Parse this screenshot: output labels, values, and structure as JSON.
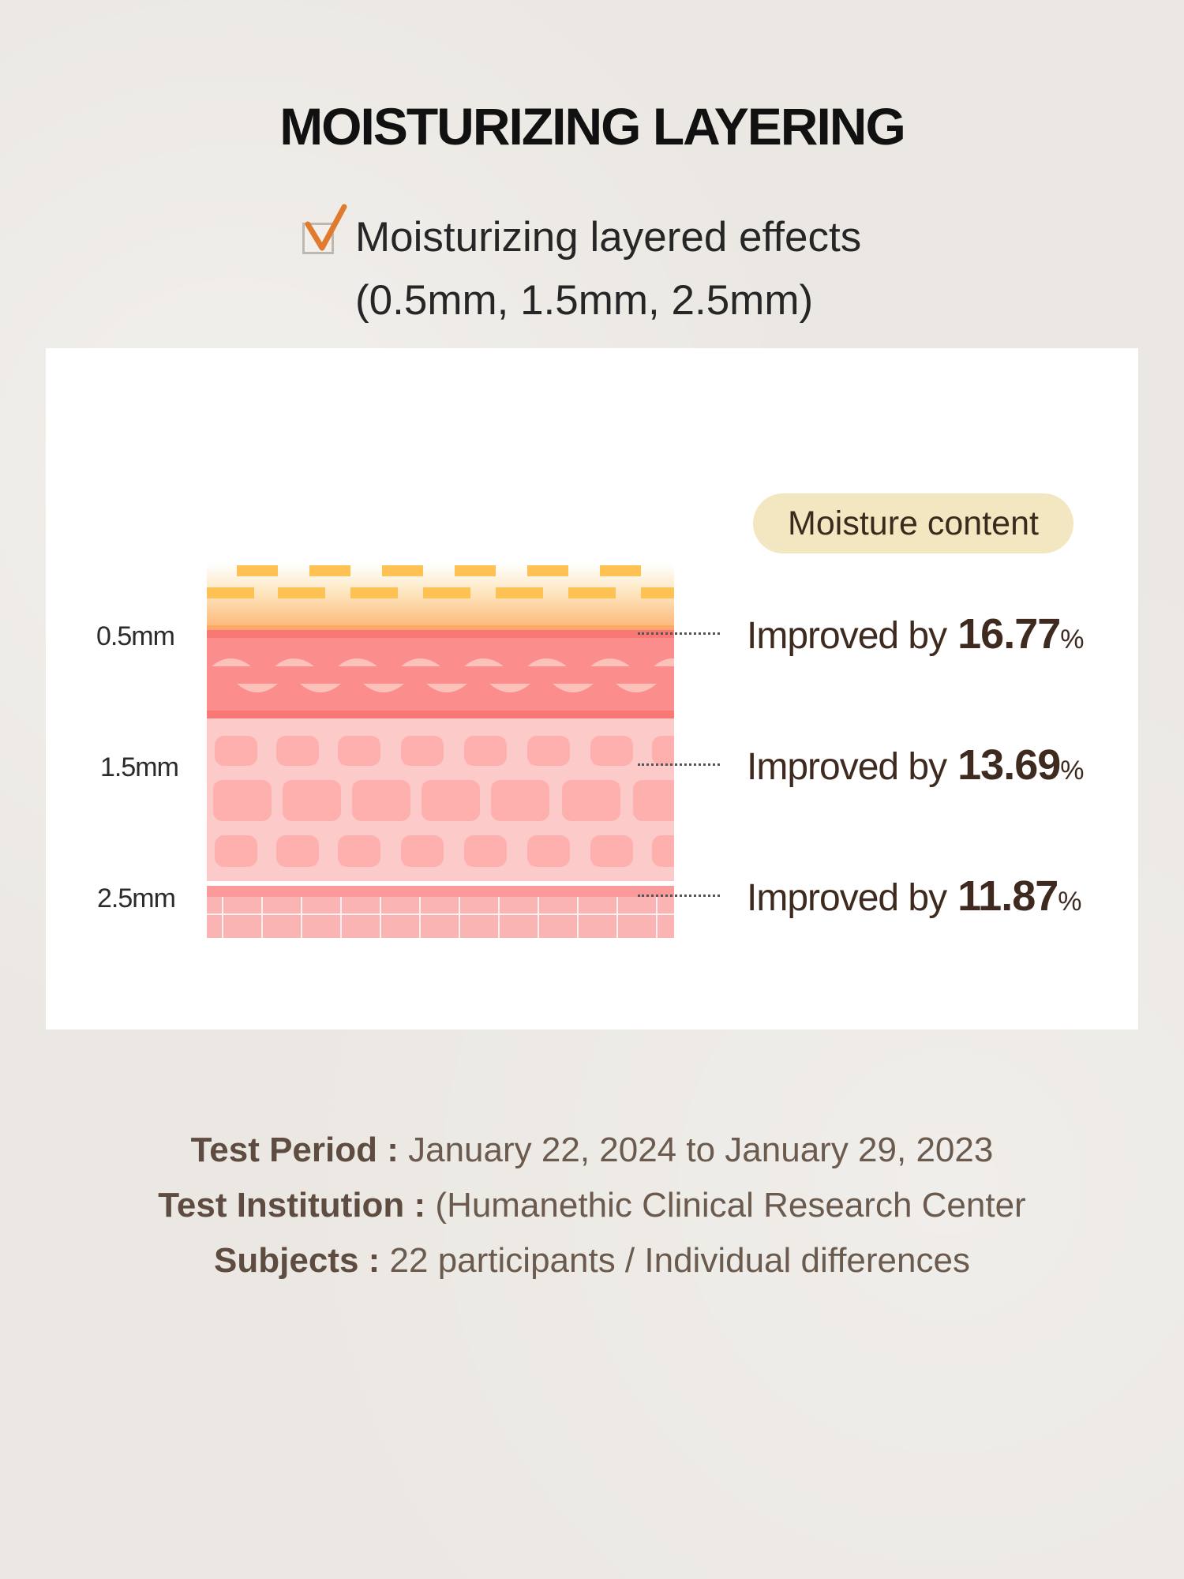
{
  "title": "MOISTURIZING LAYERING",
  "subtitle": {
    "line1": "Moisturizing layered effects",
    "line2": "(0.5mm, 1.5mm, 2.5mm)"
  },
  "badge": "Moisture content",
  "layers": [
    {
      "depth": "0.5mm",
      "prefix": "Improved by",
      "value": "16.77",
      "unit": "%"
    },
    {
      "depth": "1.5mm",
      "prefix": "Improved by",
      "value": "13.69",
      "unit": "%"
    },
    {
      "depth": "2.5mm",
      "prefix": "Improved by",
      "value": "11.87",
      "unit": "%"
    }
  ],
  "info": {
    "period_label": "Test Period :",
    "period_value": " January 22, 2024 to January 29, 2023",
    "institution_label": "Test Institution :",
    "institution_value": " (Humanethic Clinical Research Center",
    "subjects_label": "Subjects :",
    "subjects_value": " 22 participants / Individual differences"
  },
  "colors": {
    "accent": "#e07a2e",
    "badge": "#f3e7c1",
    "text_dark": "#3e2a1f",
    "skin_top": "#fdc253",
    "skin_mid": "#fb8e8c",
    "skin_low": "#fdcaca"
  }
}
